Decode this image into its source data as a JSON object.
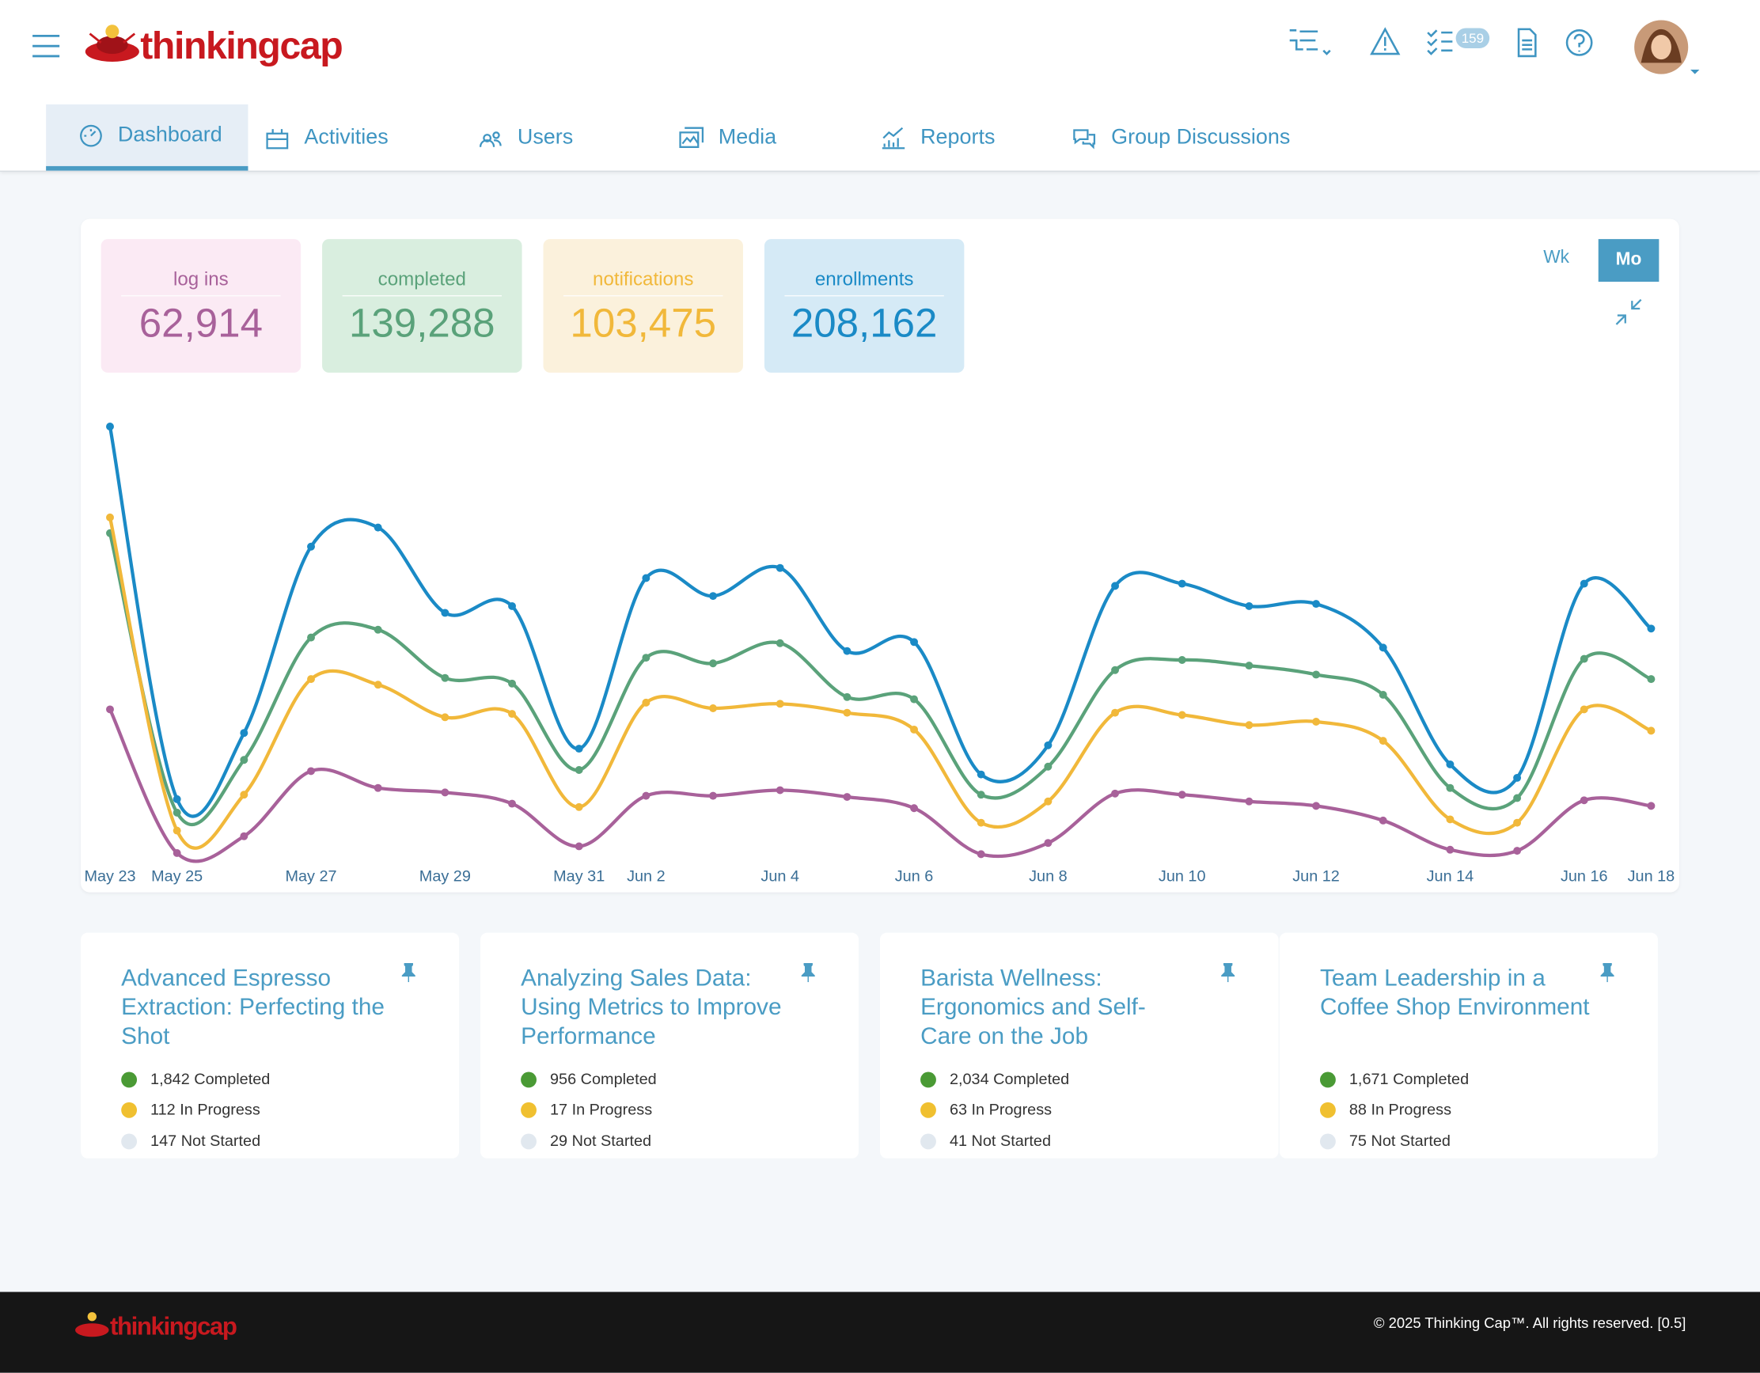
{
  "header": {
    "logo": "thinkingcap",
    "badge": "159"
  },
  "nav": [
    "Dashboard",
    "Activities",
    "Users",
    "Media",
    "Reports",
    "Group Discussions"
  ],
  "toggle": [
    "Wk",
    "Mo"
  ],
  "chart_data": {
    "type": "line",
    "categories": [
      "May 23",
      "May 25",
      null,
      "May 27",
      null,
      "May 29",
      null,
      "May 31",
      "Jun 2",
      null,
      "Jun 4",
      null,
      "Jun 6",
      null,
      "Jun 8",
      null,
      "Jun 10",
      null,
      "Jun 12",
      null,
      "Jun 14",
      null,
      "Jun 16",
      "Jun 18"
    ],
    "series": [
      {
        "name": "log ins",
        "total": "62,914",
        "color": "#a8619a",
        "values": [
          34.5,
          2.5,
          6.25,
          20.75,
          17,
          16,
          13.5,
          4,
          15.25,
          15.25,
          16.5,
          15,
          12.5,
          2.25,
          4.75,
          15.75,
          15.5,
          14,
          13,
          9.75,
          3.25,
          3,
          14.25,
          13
        ]
      },
      {
        "name": "completed",
        "total": "139,288",
        "color": "#5aa27a",
        "values": [
          73.75,
          11.5,
          23.25,
          50.5,
          52.25,
          41.5,
          40.25,
          21,
          46,
          44.75,
          49.25,
          37.25,
          36.75,
          15.5,
          21.75,
          43.25,
          45.5,
          44.25,
          42.25,
          37.75,
          17,
          14.75,
          45.75,
          41.25
        ]
      },
      {
        "name": "notifications",
        "total": "103,475",
        "color": "#f1b83a",
        "values": [
          77.25,
          7.5,
          15.5,
          41.25,
          40,
          32.75,
          33.5,
          12.75,
          36,
          34.75,
          35.75,
          33.75,
          30,
          9.25,
          14,
          33.75,
          33.25,
          31,
          31.75,
          27.5,
          10,
          9.25,
          34.5,
          29.75
        ]
      },
      {
        "name": "enrollments",
        "total": "208,162",
        "color": "#1a8ac6",
        "values": [
          97.5,
          14.5,
          29.25,
          70.75,
          75,
          56,
          57.5,
          25.75,
          63.75,
          59.75,
          66,
          47.5,
          49.5,
          20,
          26.5,
          62,
          62.5,
          57.5,
          58,
          48.25,
          22.25,
          19.25,
          62.5,
          52.5
        ]
      }
    ],
    "ylim": [
      0,
      100
    ]
  },
  "courses": [
    {
      "title": "Advanced Espresso Extraction: Perfecting the Shot",
      "completed": "1,842 Completed",
      "in_progress": "112 In Progress",
      "not_started": "147 Not Started"
    },
    {
      "title": "Analyzing Sales Data: Using Metrics to Improve Performance",
      "completed": "956 Completed",
      "in_progress": "17 In Progress",
      "not_started": "29 Not Started"
    },
    {
      "title": "Barista Wellness: Ergonomics and Self-Care on the Job",
      "completed": "2,034 Completed",
      "in_progress": "63 In Progress",
      "not_started": "41 Not Started"
    },
    {
      "title": "Team Leadership in a Coffee Shop Environment",
      "completed": "1,671 Completed",
      "in_progress": "88 In Progress",
      "not_started": "75 Not Started"
    }
  ],
  "footer": {
    "logo": "thinkingcap",
    "copyright": "© 2025 Thinking Cap™. All rights reserved. [0.5]"
  }
}
